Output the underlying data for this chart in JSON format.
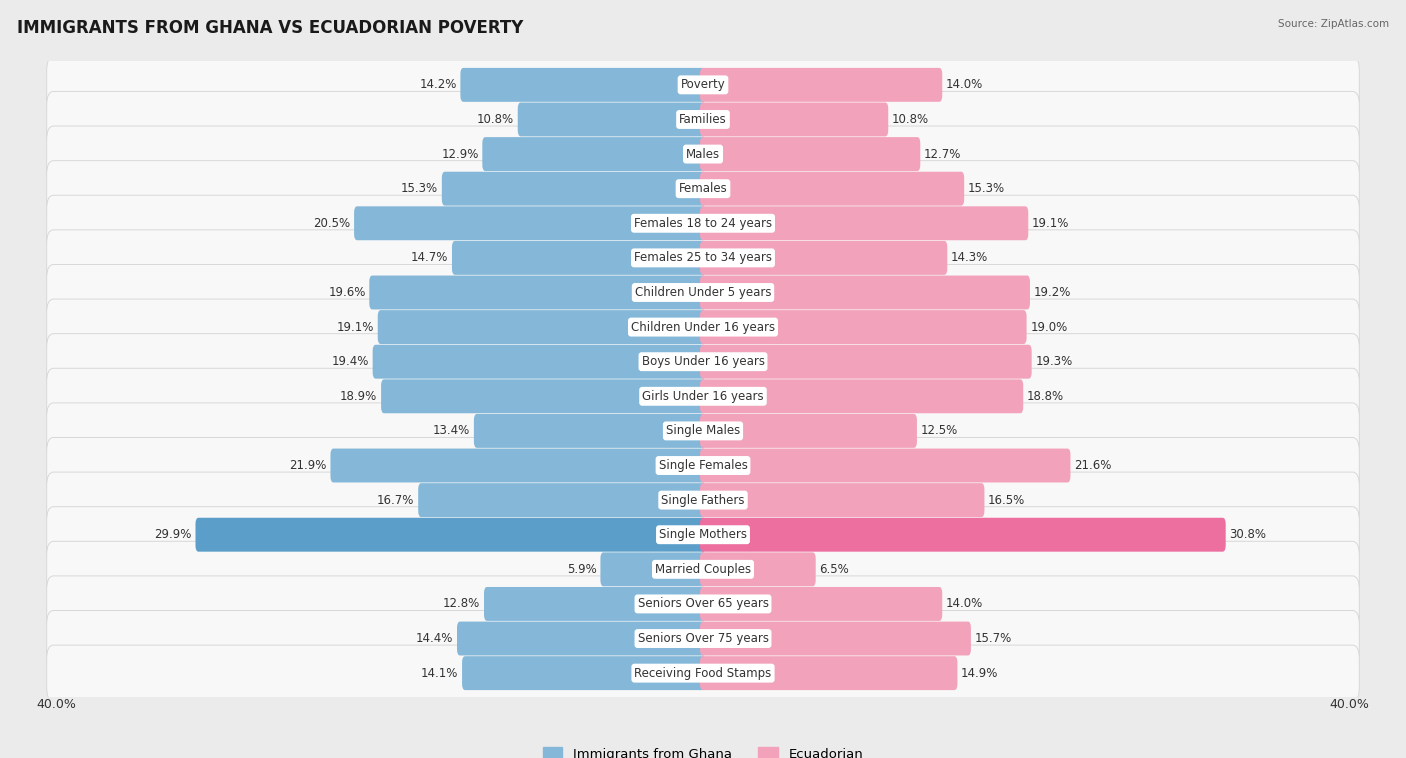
{
  "title": "IMMIGRANTS FROM GHANA VS ECUADORIAN POVERTY",
  "source": "Source: ZipAtlas.com",
  "categories": [
    "Poverty",
    "Families",
    "Males",
    "Females",
    "Females 18 to 24 years",
    "Females 25 to 34 years",
    "Children Under 5 years",
    "Children Under 16 years",
    "Boys Under 16 years",
    "Girls Under 16 years",
    "Single Males",
    "Single Females",
    "Single Fathers",
    "Single Mothers",
    "Married Couples",
    "Seniors Over 65 years",
    "Seniors Over 75 years",
    "Receiving Food Stamps"
  ],
  "ghana_values": [
    14.2,
    10.8,
    12.9,
    15.3,
    20.5,
    14.7,
    19.6,
    19.1,
    19.4,
    18.9,
    13.4,
    21.9,
    16.7,
    29.9,
    5.9,
    12.8,
    14.4,
    14.1
  ],
  "ecuador_values": [
    14.0,
    10.8,
    12.7,
    15.3,
    19.1,
    14.3,
    19.2,
    19.0,
    19.3,
    18.8,
    12.5,
    21.6,
    16.5,
    30.8,
    6.5,
    14.0,
    15.7,
    14.9
  ],
  "ghana_color": "#85b8d8",
  "ecuador_color": "#f2a3bb",
  "ghana_overflow_color": "#5a9ec9",
  "ecuador_overflow_color": "#ec6fa0",
  "max_value": 40.0,
  "bar_height": 0.62,
  "bg_color": "#ebebeb",
  "row_bg_color": "#f8f8f8",
  "row_edge_color": "#d8d8d8",
  "text_color": "#333333",
  "value_fontsize": 8.5,
  "label_fontsize": 8.5,
  "title_fontsize": 12,
  "axis_label": "40.0%"
}
